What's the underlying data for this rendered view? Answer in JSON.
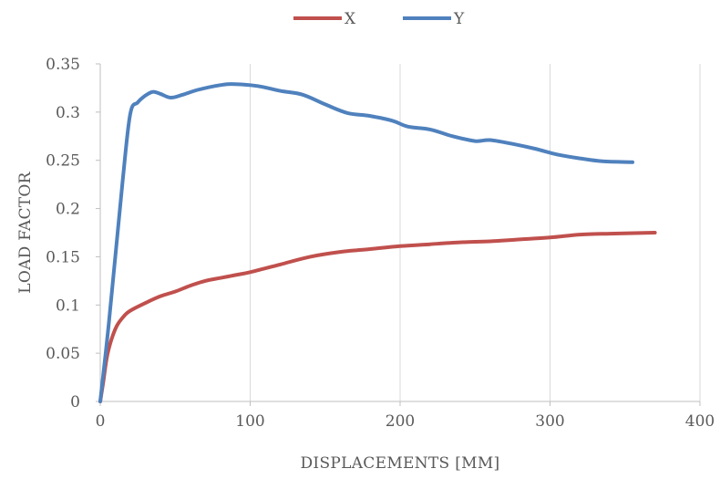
{
  "chart_data": {
    "type": "line",
    "title": "",
    "xlabel": "DISPLACEMENTS [MM]",
    "ylabel": "LOAD FACTOR",
    "xlim": [
      0,
      400
    ],
    "ylim": [
      0,
      0.35
    ],
    "x_ticks": [
      0,
      100,
      200,
      300,
      400
    ],
    "y_ticks": [
      0,
      0.05,
      0.1,
      0.15,
      0.2,
      0.25,
      0.3,
      0.35
    ],
    "x_tick_labels": [
      "0",
      "100",
      "200",
      "300",
      "400"
    ],
    "y_tick_labels": [
      "0",
      "0.05",
      "0.1",
      "0.15",
      "0.2",
      "0.25",
      "0.3",
      "0.35"
    ],
    "grid": "vertical",
    "legend_position": "top",
    "series": [
      {
        "name": "X",
        "color": "#c0504d",
        "points": [
          [
            0,
            0
          ],
          [
            2,
            0.02
          ],
          [
            5,
            0.05
          ],
          [
            10,
            0.075
          ],
          [
            15,
            0.087
          ],
          [
            20,
            0.094
          ],
          [
            30,
            0.102
          ],
          [
            40,
            0.109
          ],
          [
            50,
            0.114
          ],
          [
            60,
            0.12
          ],
          [
            70,
            0.125
          ],
          [
            80,
            0.128
          ],
          [
            90,
            0.131
          ],
          [
            100,
            0.134
          ],
          [
            120,
            0.142
          ],
          [
            140,
            0.15
          ],
          [
            160,
            0.155
          ],
          [
            180,
            0.158
          ],
          [
            200,
            0.161
          ],
          [
            220,
            0.163
          ],
          [
            240,
            0.165
          ],
          [
            260,
            0.166
          ],
          [
            280,
            0.168
          ],
          [
            300,
            0.17
          ],
          [
            320,
            0.173
          ],
          [
            340,
            0.174
          ],
          [
            370,
            0.175
          ]
        ]
      },
      {
        "name": "Y",
        "color": "#4f81bd",
        "points": [
          [
            0,
            0
          ],
          [
            5,
            0.07
          ],
          [
            10,
            0.15
          ],
          [
            15,
            0.23
          ],
          [
            20,
            0.298
          ],
          [
            25,
            0.31
          ],
          [
            30,
            0.317
          ],
          [
            35,
            0.321
          ],
          [
            40,
            0.319
          ],
          [
            47,
            0.315
          ],
          [
            55,
            0.318
          ],
          [
            65,
            0.323
          ],
          [
            80,
            0.328
          ],
          [
            90,
            0.329
          ],
          [
            105,
            0.327
          ],
          [
            120,
            0.322
          ],
          [
            135,
            0.318
          ],
          [
            150,
            0.308
          ],
          [
            165,
            0.299
          ],
          [
            180,
            0.296
          ],
          [
            195,
            0.291
          ],
          [
            205,
            0.285
          ],
          [
            220,
            0.282
          ],
          [
            235,
            0.275
          ],
          [
            250,
            0.27
          ],
          [
            260,
            0.271
          ],
          [
            275,
            0.267
          ],
          [
            290,
            0.262
          ],
          [
            305,
            0.256
          ],
          [
            320,
            0.252
          ],
          [
            335,
            0.249
          ],
          [
            355,
            0.248
          ]
        ]
      }
    ]
  }
}
